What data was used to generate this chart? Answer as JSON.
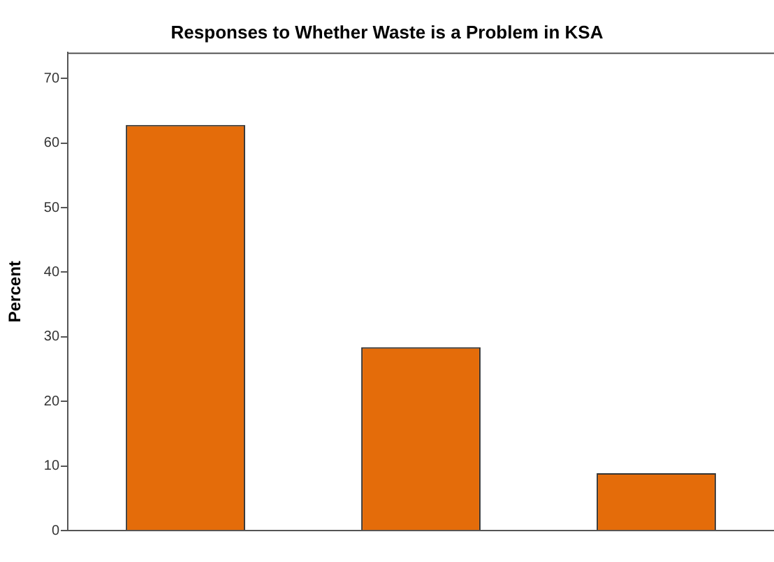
{
  "chart_data": {
    "type": "bar",
    "title": "Responses to Whether Waste is a Problem in KSA",
    "ylabel": "Percent",
    "categories": [
      null,
      null,
      null
    ],
    "values": [
      62.8,
      28.4,
      8.9
    ],
    "color": "#e46c0a",
    "ylim": [
      0,
      74
    ],
    "yticks": [
      0,
      10,
      20,
      30,
      40,
      50,
      60,
      70
    ],
    "grid": false,
    "legend": false
  }
}
